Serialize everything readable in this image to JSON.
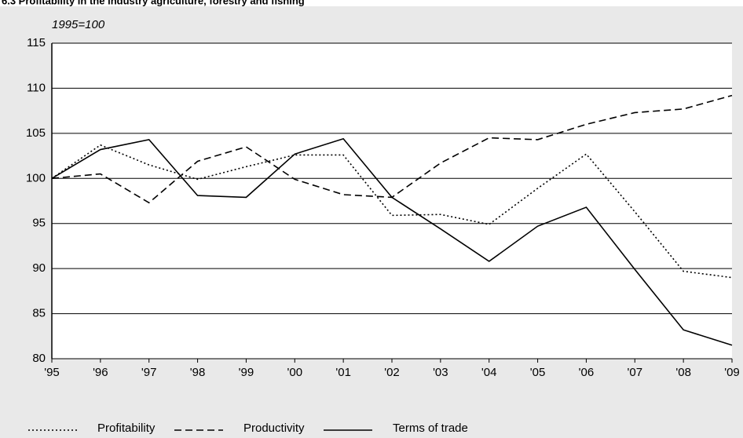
{
  "chart_data": {
    "type": "line",
    "title": "6.3 Profitability in the industry agriculture, forestry and fishing",
    "subtitle": "1995=100",
    "categories": [
      "'95",
      "'96",
      "'97",
      "'98",
      "'99",
      "'00",
      "'01",
      "'02",
      "'03",
      "'04",
      "'05",
      "'06",
      "'07",
      "'08",
      "'09"
    ],
    "series": [
      {
        "name": "Profitability",
        "color": "#000000",
        "style": "dotted",
        "values": [
          100,
          103.7,
          101.5,
          99.9,
          101.3,
          102.6,
          102.6,
          95.9,
          96.0,
          94.9,
          98.9,
          102.7,
          96.3,
          89.7,
          89.0
        ]
      },
      {
        "name": "Productivity",
        "color": "#000000",
        "style": "dashed",
        "values": [
          100,
          100.5,
          97.3,
          101.9,
          103.5,
          99.9,
          98.2,
          97.9,
          101.7,
          104.5,
          104.3,
          106.0,
          107.3,
          107.7,
          109.2
        ]
      },
      {
        "name": "Terms of trade",
        "color": "#000000",
        "style": "solid",
        "values": [
          100,
          103.2,
          104.3,
          98.1,
          97.9,
          102.7,
          104.4,
          97.9,
          94.4,
          90.8,
          94.7,
          96.8,
          89.9,
          83.2,
          81.5
        ]
      }
    ],
    "ylim": [
      80,
      115
    ],
    "yticks": [
      80,
      85,
      90,
      95,
      100,
      105,
      110,
      115
    ],
    "grid": true
  }
}
